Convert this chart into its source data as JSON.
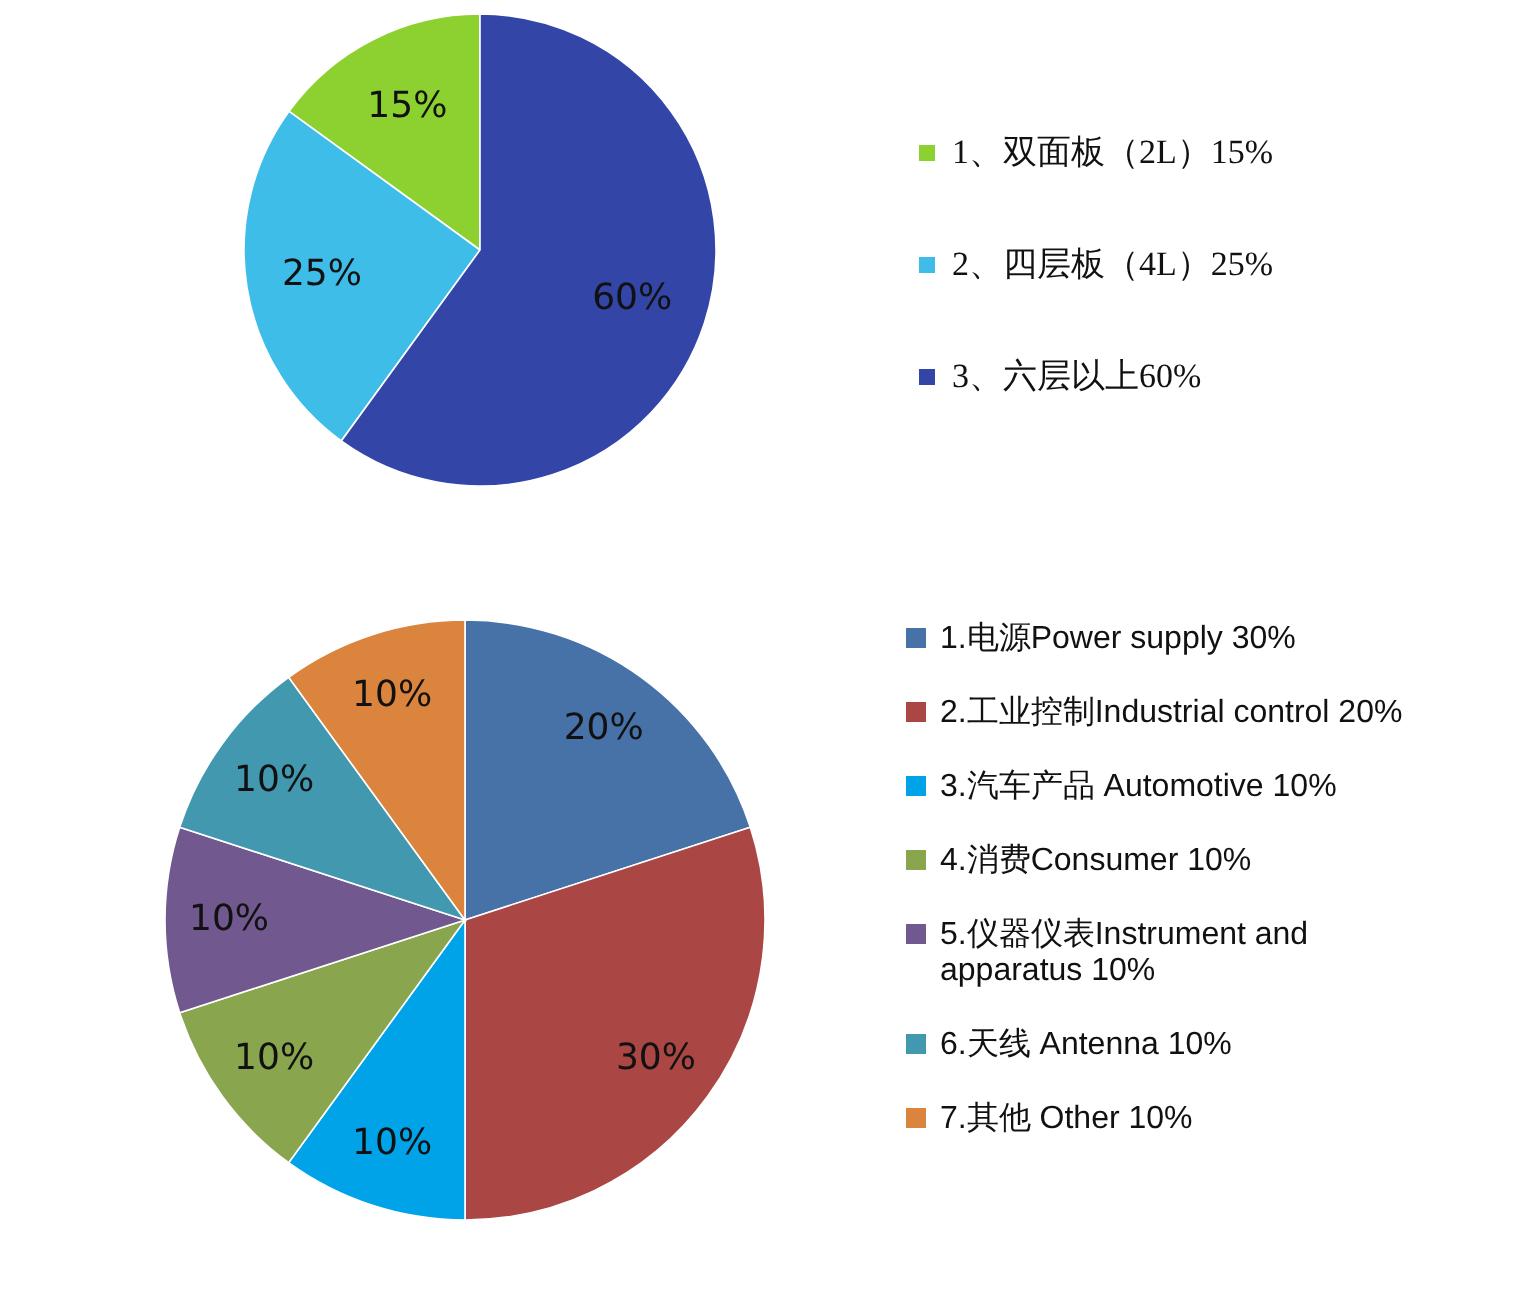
{
  "chart_data": [
    {
      "type": "pie",
      "categories": [
        "1、双面板（2L）15%",
        "2、四层板（4L）25%",
        "3、六层以上60%"
      ],
      "values": [
        15,
        25,
        60
      ],
      "colors": [
        "#8dd130",
        "#3dbde8",
        "#3346a8"
      ],
      "value_labels": [
        "15%",
        "25%",
        "60%"
      ],
      "legend": "right"
    },
    {
      "type": "pie",
      "categories": [
        "1.电源Power supply 30%",
        "2.工业控制Industrial control 20%",
        "3.汽车产品 Automotive 10%",
        "4.消费Consumer 10%",
        "5.仪器仪表Instrument and apparatus 10%",
        "6.天线 Antenna 10%",
        "7.其他 Other 10%"
      ],
      "values": [
        20,
        30,
        10,
        10,
        10,
        10,
        10
      ],
      "colors": [
        "#4672a8",
        "#aa4643",
        "#00a2e8",
        "#89a54e",
        "#71588f",
        "#4198af",
        "#db843d"
      ],
      "value_labels": [
        "20%",
        "30%",
        "10%",
        "10%",
        "10%",
        "10%",
        "10%"
      ],
      "legend": "right"
    }
  ]
}
